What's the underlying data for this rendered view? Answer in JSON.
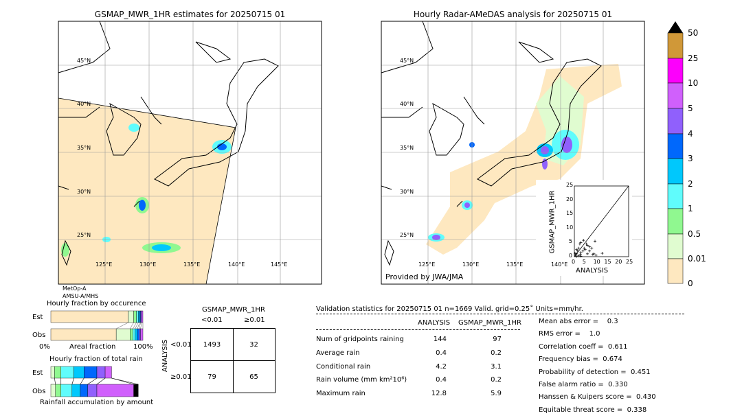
{
  "left_map": {
    "title": "GSMAP_MWR_1HR estimates for 20250715 01",
    "sensor_lines": [
      "MetOp-A",
      "AMSU-A/MHS"
    ]
  },
  "right_map": {
    "title": "Hourly Radar-AMeDAS analysis for 20250715 01",
    "credit": "Provided by JWA/JMA"
  },
  "lat_labels": [
    "45°N",
    "40°N",
    "35°N",
    "30°N",
    "25°N"
  ],
  "lon_labels": [
    "125°E",
    "130°E",
    "135°E",
    "140°E",
    "145°E"
  ],
  "colorbar": {
    "labels": [
      "50",
      "25",
      "10",
      "5",
      "4",
      "3",
      "2",
      "1",
      "0.5",
      "0.01",
      "0"
    ],
    "colors": [
      "#d09838",
      "#fc00fc",
      "#d060fc",
      "#9060fc",
      "#0068fc",
      "#00c8fc",
      "#60fcfc",
      "#90f890",
      "#e0fcd0",
      "#fee8c0"
    ]
  },
  "chart_data": [
    {
      "type": "scatter",
      "xlabel": "ANALYSIS",
      "ylabel": "GSMAP_MWR_1HR",
      "xlim": [
        0,
        25
      ],
      "ylim": [
        0,
        25
      ],
      "ticks": [
        "0",
        "5",
        "10",
        "15",
        "20",
        "25"
      ],
      "points": [
        [
          12.8,
          1.2
        ],
        [
          9.5,
          5.5
        ],
        [
          4.2,
          5.8
        ],
        [
          3,
          5
        ],
        [
          2.5,
          4.5
        ],
        [
          6,
          4
        ],
        [
          7,
          3.5
        ],
        [
          8,
          3
        ],
        [
          5,
          2.5
        ],
        [
          4,
          2
        ],
        [
          3,
          1.5
        ],
        [
          6,
          1
        ],
        [
          9,
          1
        ],
        [
          10,
          0.5
        ],
        [
          2,
          3
        ],
        [
          1.5,
          2
        ],
        [
          1,
          1
        ],
        [
          0.5,
          0.5
        ],
        [
          2,
          0.3
        ],
        [
          3,
          0.2
        ],
        [
          1,
          2.5
        ],
        [
          7,
          2
        ],
        [
          5.5,
          4.5
        ],
        [
          4.5,
          3
        ],
        [
          8.5,
          0.8
        ],
        [
          1,
          0.1
        ],
        [
          0.3,
          1.2
        ],
        [
          2.8,
          0.8
        ]
      ]
    },
    {
      "type": "bar",
      "title": "Hourly fraction by occurence",
      "xlabel": "Areal fraction",
      "x_ticks": [
        "0%",
        "100%"
      ],
      "categories": [
        "Est",
        "Obs"
      ],
      "series_fractions": {
        "Est": [
          0.84,
          0.06,
          0.03,
          0.02,
          0.015,
          0.01,
          0.01,
          0.015
        ],
        "Obs": [
          0.71,
          0.15,
          0.03,
          0.025,
          0.025,
          0.02,
          0.015,
          0.025
        ]
      }
    },
    {
      "type": "bar",
      "title": "Hourly fraction of total rain",
      "xlabel": "Rainfall accumulation by amount",
      "categories": [
        "Est",
        "Obs"
      ],
      "series_fractions": {
        "Est": [
          0.04,
          0.07,
          0.14,
          0.11,
          0.14,
          0.09,
          0.07,
          0
        ],
        "Obs": [
          0.05,
          0.06,
          0.12,
          0.09,
          0.08,
          0.1,
          0.4,
          0.05
        ]
      }
    }
  ],
  "contingency": {
    "col_title": "GSMAP_MWR_1HR",
    "row_title": "ANALYSIS",
    "col_labels": [
      "<0.01",
      "≥0.01"
    ],
    "row_labels": [
      "<0.01",
      "≥0.01"
    ],
    "cells": [
      [
        "1493",
        "32"
      ],
      [
        "79",
        "65"
      ]
    ]
  },
  "stats": {
    "header": "Validation statistics for 20250715 01  n=1669 Valid. grid=0.25˚ Units=mm/hr.",
    "col_headers": [
      "ANALYSIS",
      "GSMAP_MWR_1HR"
    ],
    "rows": [
      {
        "label": "Num of gridpoints raining",
        "a": "144",
        "g": "97"
      },
      {
        "label": "Average rain",
        "a": "0.4",
        "g": "0.2"
      },
      {
        "label": "Conditional rain",
        "a": "4.2",
        "g": "3.1"
      },
      {
        "label": "Rain volume (mm km²10⁶)",
        "a": "0.4",
        "g": "0.2"
      },
      {
        "label": "Maximum rain",
        "a": "12.8",
        "g": "5.9"
      }
    ],
    "scores": [
      "Mean abs error =    0.3",
      "RMS error =    1.0",
      "Correlation coeff =  0.611",
      "Frequency bias =  0.674",
      "Probability of detection =  0.451",
      "False alarm ratio =  0.330",
      "Hanssen & Kuipers score =  0.430",
      "Equitable threat score =  0.338"
    ]
  }
}
